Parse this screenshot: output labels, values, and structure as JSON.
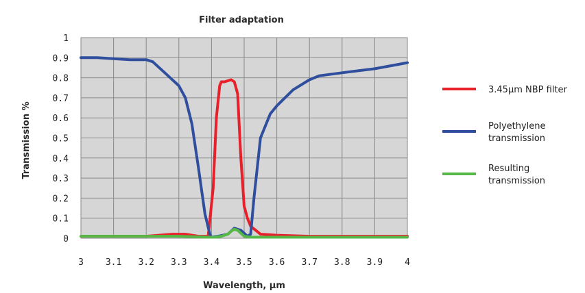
{
  "chart_data": {
    "type": "line",
    "title": "Filter adaptation",
    "xlabel": "Wavelength, µm",
    "ylabel": "Transmission %",
    "xlim": [
      3,
      4
    ],
    "ylim": [
      0,
      1
    ],
    "x_ticks": [
      "3",
      "3.1",
      "3.2",
      "3.3",
      "3.4",
      "3.5",
      "3.6",
      "3.7",
      "3.8",
      "3.9",
      "4"
    ],
    "y_ticks": [
      "0",
      "0.1",
      "0.2",
      "0.3",
      "0.4",
      "0.5",
      "0.6",
      "0.7",
      "0.8",
      "0.9",
      "1"
    ],
    "grid": true,
    "legend_position": "right",
    "series": [
      {
        "name": "3.45µm NBP filter",
        "color": "#e8202a",
        "x": [
          3.0,
          3.1,
          3.2,
          3.28,
          3.32,
          3.36,
          3.39,
          3.405,
          3.415,
          3.425,
          3.43,
          3.44,
          3.46,
          3.47,
          3.48,
          3.49,
          3.5,
          3.51,
          3.52,
          3.55,
          3.6,
          3.7,
          3.8,
          3.9,
          4.0
        ],
        "y": [
          0.01,
          0.01,
          0.01,
          0.02,
          0.02,
          0.01,
          0.01,
          0.25,
          0.6,
          0.76,
          0.78,
          0.78,
          0.79,
          0.78,
          0.72,
          0.4,
          0.16,
          0.1,
          0.06,
          0.02,
          0.015,
          0.01,
          0.01,
          0.01,
          0.01
        ]
      },
      {
        "name": "Polyethylene transmission",
        "color": "#2f4f9e",
        "x": [
          3.0,
          3.05,
          3.1,
          3.15,
          3.2,
          3.22,
          3.26,
          3.3,
          3.32,
          3.34,
          3.36,
          3.38,
          3.395,
          3.4,
          3.42,
          3.45,
          3.47,
          3.49,
          3.51,
          3.52,
          3.53,
          3.55,
          3.58,
          3.6,
          3.65,
          3.7,
          3.73,
          3.8,
          3.9,
          4.0
        ],
        "y": [
          0.9,
          0.9,
          0.895,
          0.89,
          0.89,
          0.88,
          0.82,
          0.76,
          0.7,
          0.57,
          0.35,
          0.12,
          0.02,
          0.005,
          0.01,
          0.02,
          0.05,
          0.04,
          0.01,
          0.02,
          0.2,
          0.5,
          0.62,
          0.66,
          0.74,
          0.79,
          0.81,
          0.825,
          0.845,
          0.875
        ]
      },
      {
        "name": "Resulting transmission",
        "color": "#55b847",
        "x": [
          3.0,
          3.1,
          3.2,
          3.3,
          3.39,
          3.41,
          3.43,
          3.45,
          3.46,
          3.47,
          3.48,
          3.49,
          3.5,
          3.52,
          3.55,
          3.6,
          3.7,
          3.8,
          3.9,
          4.0
        ],
        "y": [
          0.01,
          0.01,
          0.01,
          0.01,
          0.005,
          0.005,
          0.01,
          0.02,
          0.035,
          0.045,
          0.04,
          0.025,
          0.01,
          0.005,
          0.005,
          0.005,
          0.005,
          0.005,
          0.005,
          0.005
        ]
      }
    ],
    "legend": [
      {
        "lines": [
          "3.45µm NBP filter"
        ]
      },
      {
        "lines": [
          "Polyethylene",
          "transmission"
        ]
      },
      {
        "lines": [
          "Resulting",
          "transmission"
        ]
      }
    ]
  }
}
